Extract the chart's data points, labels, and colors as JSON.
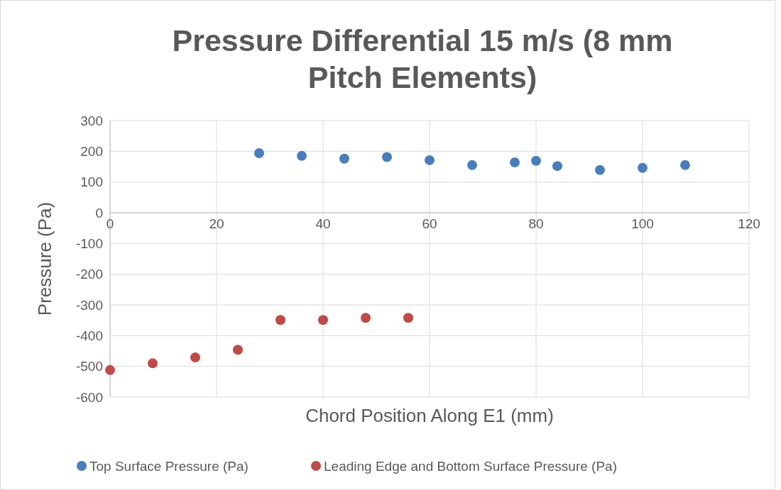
{
  "chart_data": {
    "type": "scatter",
    "title": "Pressure Differential 15 m/s (8 mm Pitch Elements)",
    "xlabel": "Chord Position Along E1 (mm)",
    "ylabel": "Pressure (Pa)",
    "xlim": [
      0,
      120
    ],
    "xticks": [
      0,
      20,
      40,
      60,
      80,
      100,
      120
    ],
    "ylim": [
      -600,
      300
    ],
    "yticks": [
      -600,
      -500,
      -400,
      -300,
      -200,
      -100,
      0,
      100,
      200,
      300
    ],
    "grid": true,
    "legend": "bottom",
    "marker": "circle",
    "series": [
      {
        "name": "Top Surface Pressure (Pa)",
        "color": "#4a7ebb",
        "x": [
          28,
          36,
          44,
          52,
          60,
          68,
          76,
          80,
          84,
          92,
          100,
          108
        ],
        "values": [
          194,
          185,
          176,
          181,
          171,
          155,
          164,
          169,
          152,
          139,
          146,
          155
        ]
      },
      {
        "name": "Leading Edge and Bottom Surface Pressure (Pa)",
        "color": "#be4b48",
        "x": [
          0,
          8,
          16,
          24,
          32,
          40,
          48,
          56
        ],
        "values": [
          -512,
          -490,
          -471,
          -446,
          -349,
          -349,
          -342,
          -342
        ]
      }
    ]
  }
}
